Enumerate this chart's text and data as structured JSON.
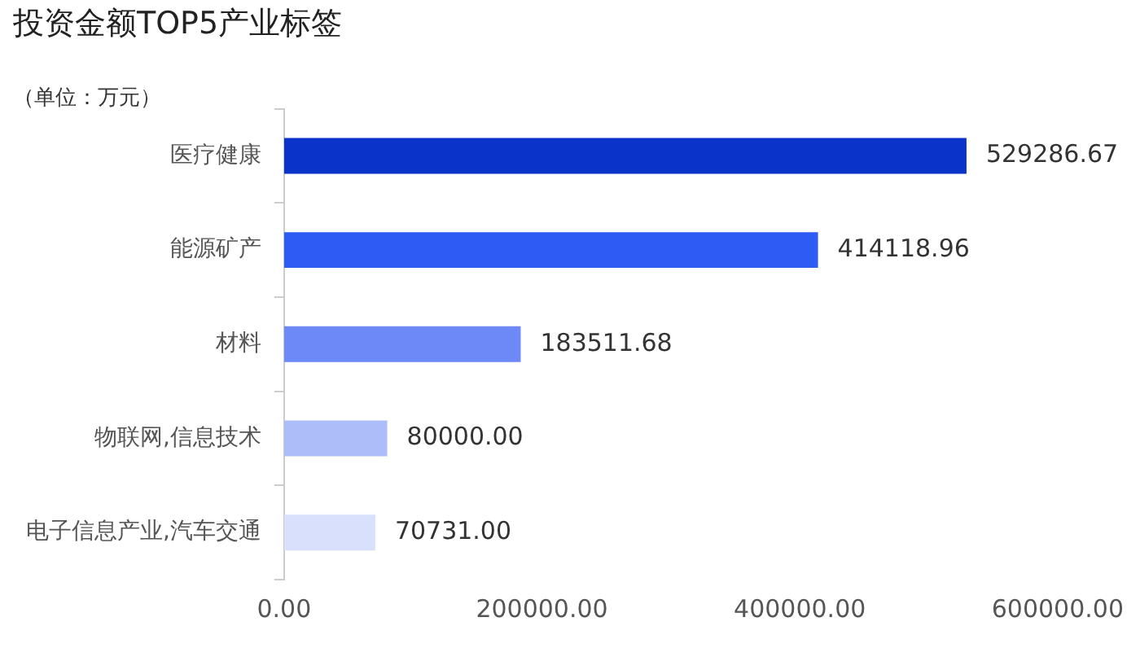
{
  "chart_data": {
    "type": "bar",
    "orientation": "horizontal",
    "title": "投资金额TOP5产业标签",
    "ylabel": "（单位：万元）",
    "categories": [
      "医疗健康",
      "能源矿产",
      "材料",
      "物联网,信息技术",
      "电子信息产业,汽车交通"
    ],
    "values": [
      529286.67,
      414118.96,
      183511.68,
      80000.0,
      70731.0
    ],
    "colors": [
      "#0a33c9",
      "#2f5bf5",
      "#6d88f7",
      "#adbdfa",
      "#d9e0fb"
    ],
    "xlim": [
      0,
      600000
    ],
    "xticks": [
      {
        "value": 0,
        "label": "0.00"
      },
      {
        "value": 200000,
        "label": "200000.00"
      },
      {
        "value": 400000,
        "label": "400000.00"
      },
      {
        "value": 600000,
        "label": "600000.00"
      }
    ],
    "value_labels": [
      "529286.67",
      "414118.96",
      "183511.68",
      "80000.00",
      "70731.00"
    ],
    "grid": false,
    "legend": false
  }
}
